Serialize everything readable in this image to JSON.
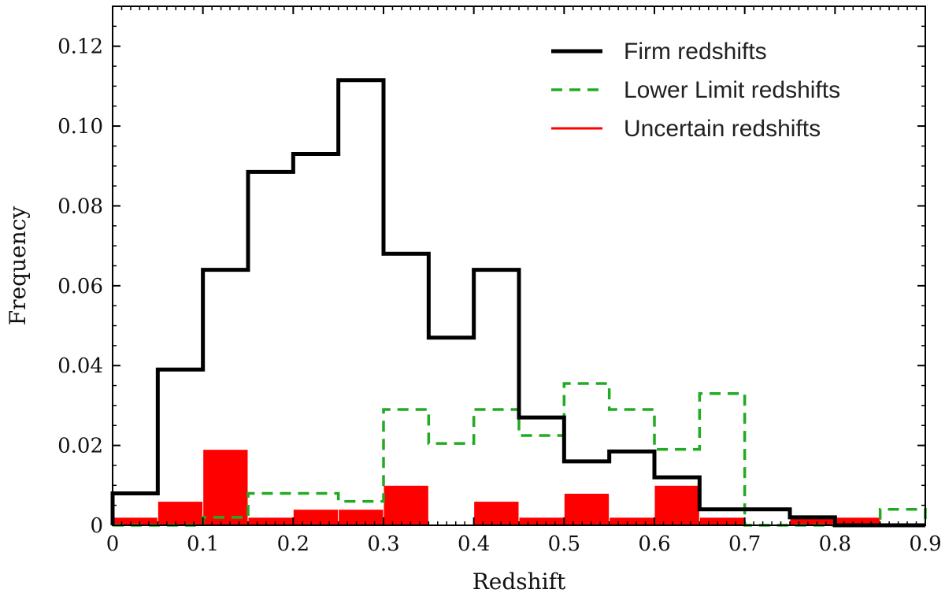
{
  "chart_data": {
    "type": "histogram",
    "xlabel": "Redshift",
    "ylabel": "Frequency",
    "xlim": [
      0,
      0.9
    ],
    "ylim": [
      0,
      0.13
    ],
    "x_ticks": [
      "0",
      "0.1",
      "0.2",
      "0.3",
      "0.4",
      "0.5",
      "0.6",
      "0.7",
      "0.8",
      "0.9"
    ],
    "y_ticks": [
      "0",
      "0.02",
      "0.04",
      "0.06",
      "0.08",
      "0.10",
      "0.12"
    ],
    "bin_edges": [
      0,
      0.05,
      0.1,
      0.15,
      0.2,
      0.25,
      0.3,
      0.35,
      0.4,
      0.45,
      0.5,
      0.55,
      0.6,
      0.65,
      0.7,
      0.75,
      0.8,
      0.85,
      0.9
    ],
    "legend_position": "top-right",
    "series": [
      {
        "name": "Firm redshifts",
        "style": "step",
        "color": "#000000",
        "values": [
          0.008,
          0.039,
          0.064,
          0.0885,
          0.093,
          0.1115,
          0.068,
          0.047,
          0.064,
          0.027,
          0.016,
          0.0185,
          0.012,
          0.004,
          0.004,
          0.002,
          0,
          0
        ]
      },
      {
        "name": "Lower Limit redshifts",
        "style": "dashed-step",
        "color": "#22aa22",
        "values": [
          0,
          0,
          0.002,
          0.008,
          0.008,
          0.006,
          0.029,
          0.0205,
          0.029,
          0.0225,
          0.0355,
          0.029,
          0.019,
          0.033,
          0,
          0,
          0,
          0.004
        ]
      },
      {
        "name": "Uncertain redshifts",
        "style": "filled-bar",
        "color": "#ff0000",
        "values": [
          0.002,
          0.006,
          0.019,
          0.002,
          0.004,
          0.004,
          0.01,
          0,
          0.006,
          0.002,
          0.008,
          0.002,
          0.01,
          0.002,
          0,
          0.002,
          0.002,
          0
        ]
      }
    ]
  }
}
